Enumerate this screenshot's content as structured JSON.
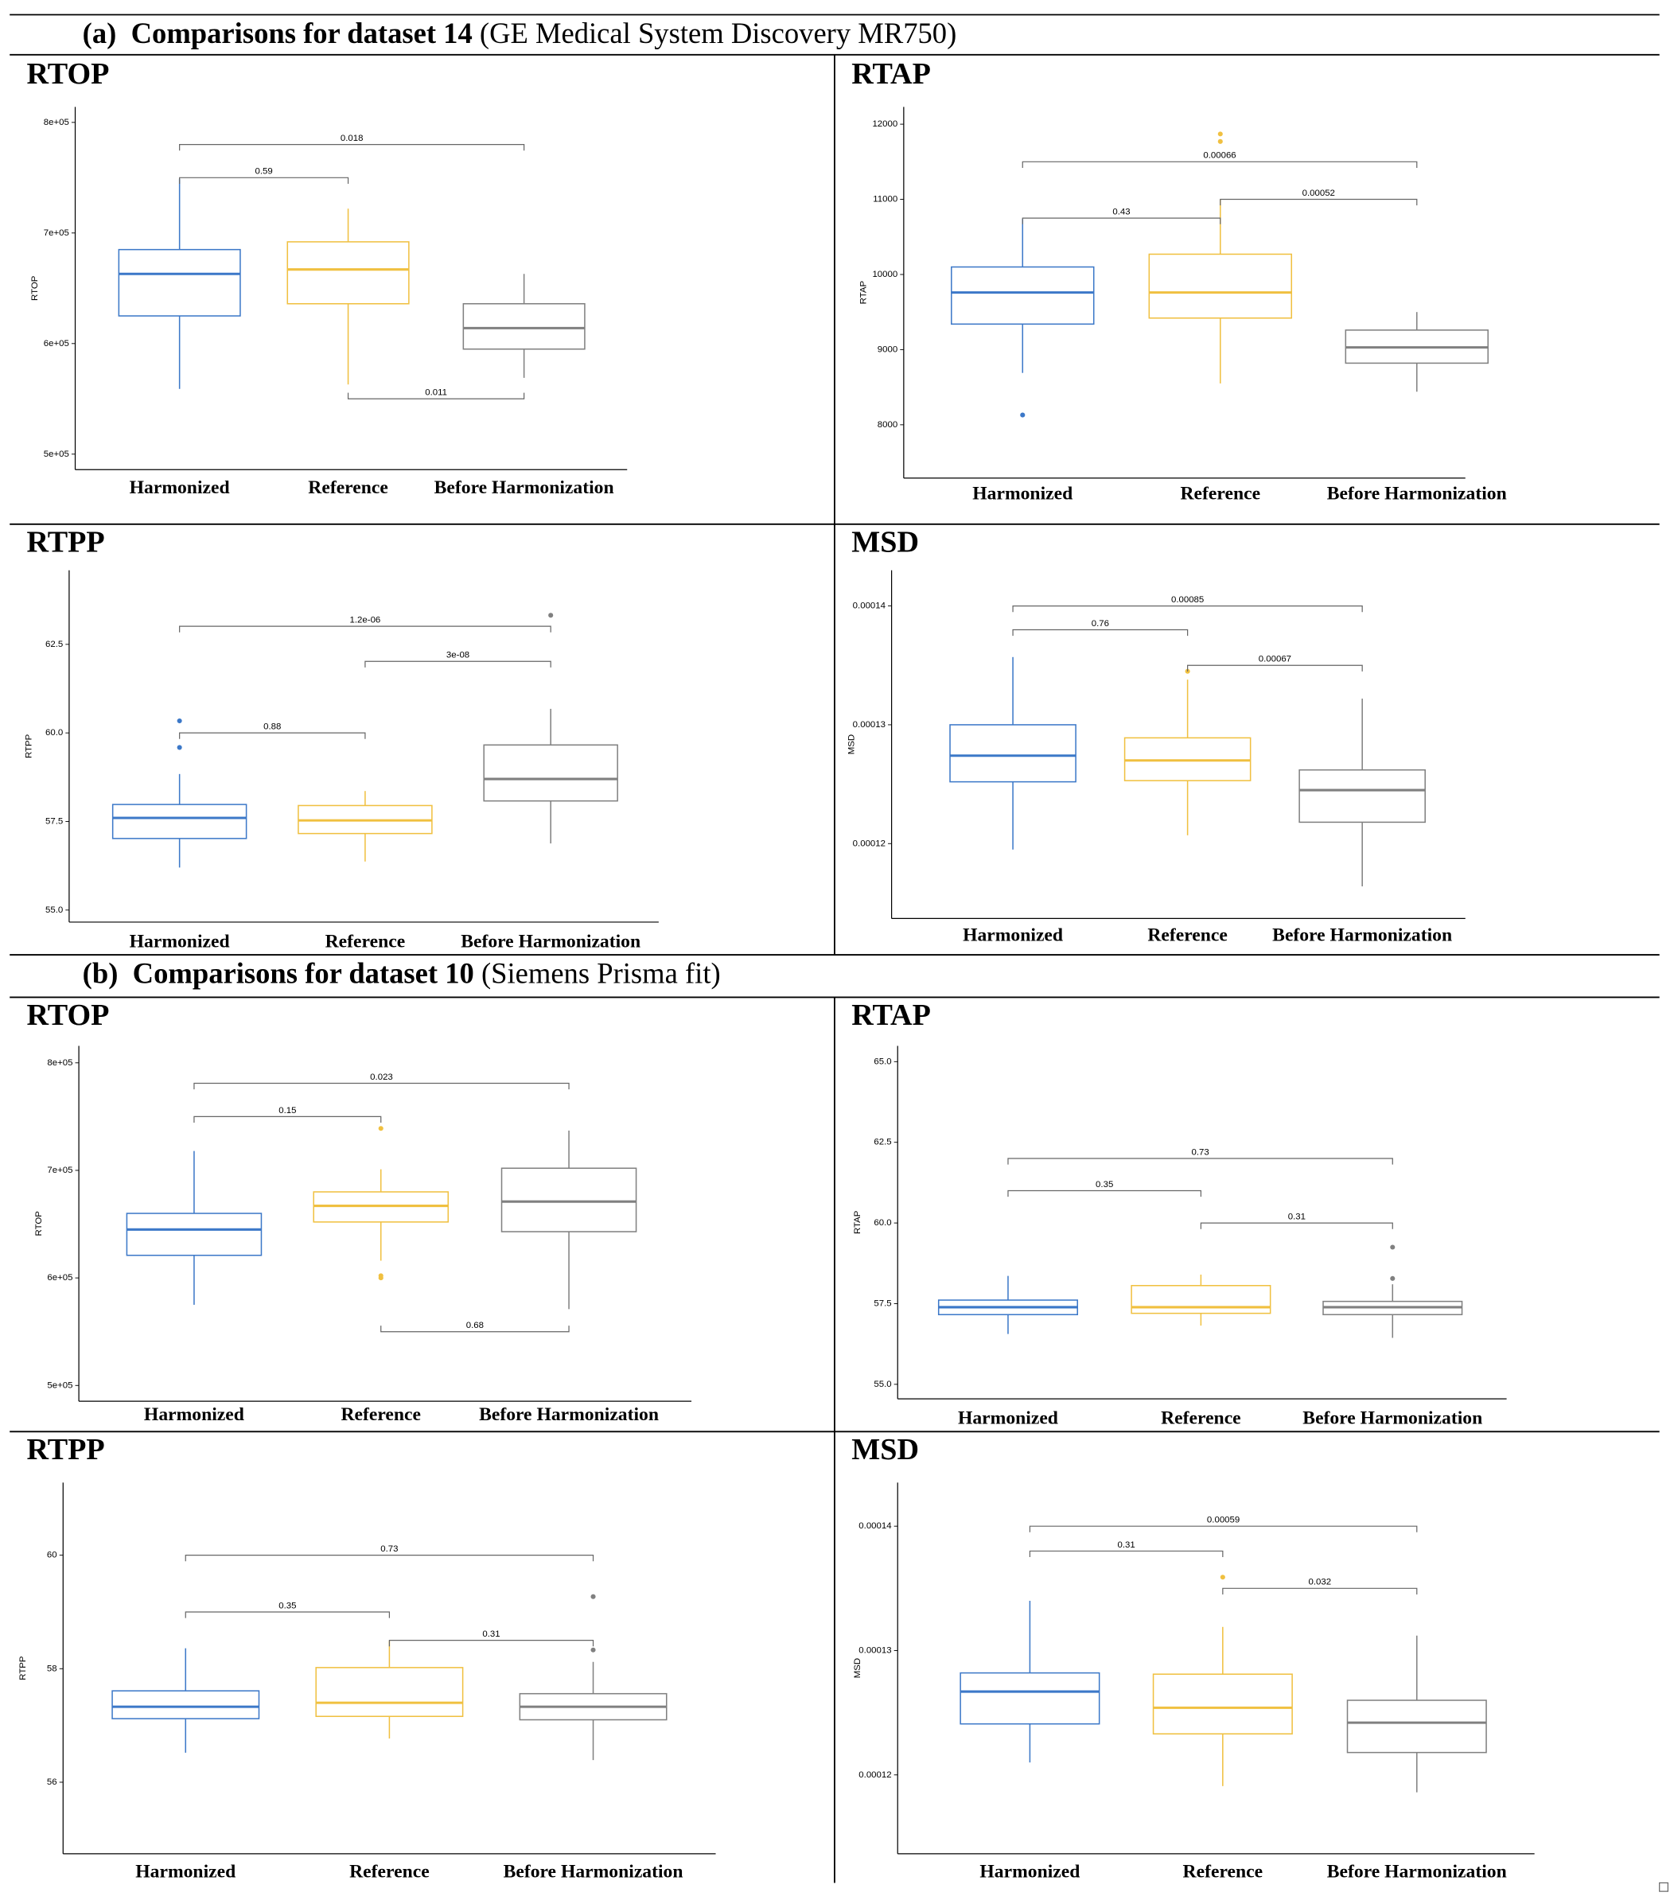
{
  "sections": [
    {
      "label": "(a)",
      "title": "Comparisons for dataset 14",
      "subtitle": "(GE Medical System Discovery MR750)"
    },
    {
      "label": "(b)",
      "title": "Comparisons for dataset 10",
      "subtitle": "(Siemens Prisma fit)"
    }
  ],
  "chart_data": [
    {
      "type": "box",
      "title": "RTOP",
      "y_label": "RTOP",
      "categories": [
        "Harmonized",
        "Reference",
        "Before Harmonization"
      ],
      "colors": [
        "#3c78c8",
        "#f0c040",
        "#808080"
      ],
      "boxes": [
        {
          "low": 559000,
          "q1": 625000,
          "median": 663000,
          "q3": 685000,
          "high": 749000,
          "outliers": []
        },
        {
          "low": 563000,
          "q1": 636000,
          "median": 667000,
          "q3": 692000,
          "high": 722000,
          "outliers": []
        },
        {
          "low": 569000,
          "q1": 595000,
          "median": 614000,
          "q3": 636000,
          "high": 663000,
          "outliers": []
        }
      ],
      "comparisons": [
        {
          "from": 0,
          "to": 2,
          "y": 780000,
          "label": "0.018"
        },
        {
          "from": 0,
          "to": 1,
          "y": 750000,
          "label": "0.59"
        },
        {
          "from": 1,
          "to": 2,
          "y": 550000,
          "label": "0.011"
        }
      ],
      "ylim": [
        486000,
        814000
      ],
      "yticks": [
        {
          "value": 500000,
          "label": "5e+05"
        },
        {
          "value": 600000,
          "label": "6e+05"
        },
        {
          "value": 700000,
          "label": "7e+05"
        },
        {
          "value": 800000,
          "label": "8e+05"
        }
      ]
    },
    {
      "type": "box",
      "title": "RTAP",
      "y_label": "RTAP",
      "categories": [
        "Harmonized",
        "Reference",
        "Before Harmonization"
      ],
      "colors": [
        "#3c78c8",
        "#f0c040",
        "#808080"
      ],
      "boxes": [
        {
          "low": 8690,
          "q1": 9340,
          "median": 9760,
          "q3": 10100,
          "high": 10740,
          "outliers": [
            8130
          ]
        },
        {
          "low": 8550,
          "q1": 9420,
          "median": 9760,
          "q3": 10270,
          "high": 11000,
          "outliers": [
            11870,
            11770
          ]
        },
        {
          "low": 8440,
          "q1": 8820,
          "median": 9030,
          "q3": 9260,
          "high": 9500,
          "outliers": []
        }
      ],
      "comparisons": [
        {
          "from": 0,
          "to": 2,
          "y": 11500,
          "label": "0.00066"
        },
        {
          "from": 0,
          "to": 1,
          "y": 10750,
          "label": "0.43"
        },
        {
          "from": 1,
          "to": 2,
          "y": 11000,
          "label": "0.00052"
        }
      ],
      "ylim": [
        7290,
        12230
      ],
      "yticks": [
        8000,
        9000,
        10000,
        11000,
        12000
      ]
    },
    {
      "type": "box",
      "title": "RTPP",
      "y_label": "RTPP",
      "categories": [
        "Harmonized",
        "Reference",
        "Before Harmonization"
      ],
      "colors": [
        "#3c78c8",
        "#f0c040",
        "#808080"
      ],
      "boxes": [
        {
          "low": 56.2,
          "q1": 57.02,
          "median": 57.6,
          "q3": 57.98,
          "high": 58.84,
          "outliers": [
            60.34,
            59.59
          ]
        },
        {
          "low": 56.37,
          "q1": 57.16,
          "median": 57.53,
          "q3": 57.95,
          "high": 58.36,
          "outliers": []
        },
        {
          "low": 56.88,
          "q1": 58.08,
          "median": 58.7,
          "q3": 59.66,
          "high": 60.68,
          "outliers": [
            63.32
          ]
        }
      ],
      "comparisons": [
        {
          "from": 0,
          "to": 2,
          "y": 63.01,
          "label": "1.2e-06"
        },
        {
          "from": 1,
          "to": 2,
          "y": 62.02,
          "label": "3e-08"
        },
        {
          "from": 0,
          "to": 1,
          "y": 60,
          "label": "0.88"
        }
      ],
      "ylim": [
        54.66,
        64.59
      ],
      "yticks": [
        {
          "value": 55,
          "label": "55.0"
        },
        57.5,
        {
          "value": 60,
          "label": "60.0"
        },
        62.5
      ]
    },
    {
      "type": "box",
      "title": "MSD",
      "y_label": "MSD",
      "categories": [
        "Harmonized",
        "Reference",
        "Before Harmonization"
      ],
      "colors": [
        "#3c78c8",
        "#f0c040",
        "#808080"
      ],
      "boxes": [
        {
          "low": 0.0001195,
          "q1": 0.0001252,
          "median": 0.0001274,
          "q3": 0.00013,
          "high": 0.0001357,
          "outliers": []
        },
        {
          "low": 0.0001207,
          "q1": 0.0001253,
          "median": 0.000127,
          "q3": 0.0001289,
          "high": 0.0001338,
          "outliers": [
            0.0001345
          ]
        },
        {
          "low": 0.0001164,
          "q1": 0.0001218,
          "median": 0.0001245,
          "q3": 0.0001262,
          "high": 0.0001322,
          "outliers": []
        }
      ],
      "comparisons": [
        {
          "from": 0,
          "to": 2,
          "y": 0.00014,
          "label": "0.00085"
        },
        {
          "from": 0,
          "to": 1,
          "y": 0.000138,
          "label": "0.76"
        },
        {
          "from": 1,
          "to": 2,
          "y": 0.000135,
          "label": "0.00067"
        }
      ],
      "ylim": [
        0.0001137,
        0.000143
      ],
      "yticks": [
        0.00012,
        0.00013,
        0.00014
      ]
    },
    {
      "type": "box",
      "title": "RTOP",
      "y_label": "RTOP",
      "categories": [
        "Harmonized",
        "Reference",
        "Before Harmonization"
      ],
      "colors": [
        "#3c78c8",
        "#f0c040",
        "#808080"
      ],
      "boxes": [
        {
          "low": 575000,
          "q1": 621000,
          "median": 645000,
          "q3": 660000,
          "high": 718000,
          "outliers": []
        },
        {
          "low": 616000,
          "q1": 652000,
          "median": 667000,
          "q3": 680000,
          "high": 701000,
          "outliers": [
            739000,
            602000,
            600000
          ]
        },
        {
          "low": 571000,
          "q1": 643000,
          "median": 671000,
          "q3": 702000,
          "high": 737000,
          "outliers": []
        }
      ],
      "comparisons": [
        {
          "from": 0,
          "to": 2,
          "y": 781000,
          "label": "0.023"
        },
        {
          "from": 0,
          "to": 1,
          "y": 750000,
          "label": "0.15"
        },
        {
          "from": 1,
          "to": 2,
          "y": 550000,
          "label": "0.68"
        }
      ],
      "ylim": [
        485300,
        815800
      ],
      "yticks": [
        {
          "value": 500000,
          "label": "5e+05"
        },
        {
          "value": 600000,
          "label": "6e+05"
        },
        {
          "value": 700000,
          "label": "7e+05"
        },
        {
          "value": 800000,
          "label": "8e+05"
        }
      ]
    },
    {
      "type": "box",
      "title": "RTAP",
      "y_label": "RTAP",
      "categories": [
        "Harmonized",
        "Reference",
        "Before Harmonization"
      ],
      "colors": [
        "#3c78c8",
        "#f0c040",
        "#808080"
      ],
      "boxes": [
        {
          "low": 56.56,
          "q1": 57.16,
          "median": 57.39,
          "q3": 57.61,
          "high": 58.36,
          "outliers": []
        },
        {
          "low": 56.82,
          "q1": 57.2,
          "median": 57.39,
          "q3": 58.06,
          "high": 58.4,
          "outliers": []
        },
        {
          "low": 56.44,
          "q1": 57.16,
          "median": 57.39,
          "q3": 57.57,
          "high": 58.1,
          "outliers": [
            59.25,
            58.28
          ]
        }
      ],
      "comparisons": [
        {
          "from": 0,
          "to": 2,
          "y": 62,
          "label": "0.73"
        },
        {
          "from": 0,
          "to": 1,
          "y": 61,
          "label": "0.35"
        },
        {
          "from": 1,
          "to": 2,
          "y": 60,
          "label": "0.31"
        }
      ],
      "ylim": [
        54.55,
        65.49
      ],
      "yticks": [
        {
          "value": 55,
          "label": "55.0"
        },
        57.5,
        {
          "value": 60,
          "label": "60.0"
        },
        62.5,
        {
          "value": 65,
          "label": "65.0"
        }
      ]
    },
    {
      "type": "box",
      "title": "RTPP",
      "y_label": "RTPP",
      "categories": [
        "Harmonized",
        "Reference",
        "Before Harmonization"
      ],
      "colors": [
        "#3c78c8",
        "#f0c040",
        "#808080"
      ],
      "boxes": [
        {
          "low": 56.52,
          "q1": 57.12,
          "median": 57.33,
          "q3": 57.61,
          "high": 58.36,
          "outliers": []
        },
        {
          "low": 56.77,
          "q1": 57.16,
          "median": 57.4,
          "q3": 58.02,
          "high": 58.49,
          "outliers": []
        },
        {
          "low": 56.39,
          "q1": 57.1,
          "median": 57.33,
          "q3": 57.56,
          "high": 58.12,
          "outliers": [
            59.27,
            58.33
          ]
        }
      ],
      "comparisons": [
        {
          "from": 0,
          "to": 2,
          "y": 60,
          "label": "0.73"
        },
        {
          "from": 0,
          "to": 1,
          "y": 59,
          "label": "0.35"
        },
        {
          "from": 1,
          "to": 2,
          "y": 58.5,
          "label": "0.31"
        }
      ],
      "ylim": [
        54.74,
        61.28
      ],
      "yticks": [
        56,
        58,
        60
      ]
    },
    {
      "type": "box",
      "title": "MSD",
      "y_label": "MSD",
      "categories": [
        "Harmonized",
        "Reference",
        "Before Harmonization"
      ],
      "colors": [
        "#3c78c8",
        "#f0c040",
        "#808080"
      ],
      "boxes": [
        {
          "low": 0.000121,
          "q1": 0.0001241,
          "median": 0.0001267,
          "q3": 0.0001282,
          "high": 0.000134,
          "outliers": []
        },
        {
          "low": 0.0001191,
          "q1": 0.0001233,
          "median": 0.0001254,
          "q3": 0.0001281,
          "high": 0.0001319,
          "outliers": [
            0.0001359
          ]
        },
        {
          "low": 0.0001186,
          "q1": 0.0001218,
          "median": 0.0001242,
          "q3": 0.000126,
          "high": 0.0001312,
          "outliers": []
        }
      ],
      "comparisons": [
        {
          "from": 0,
          "to": 2,
          "y": 0.00014,
          "label": "0.00059"
        },
        {
          "from": 0,
          "to": 1,
          "y": 0.000138,
          "label": "0.31"
        },
        {
          "from": 1,
          "to": 2,
          "y": 0.000135,
          "label": "0.032"
        }
      ],
      "ylim": [
        0.00011366,
        0.00014351
      ],
      "yticks": [
        0.00012,
        0.00013,
        0.00014
      ]
    }
  ]
}
